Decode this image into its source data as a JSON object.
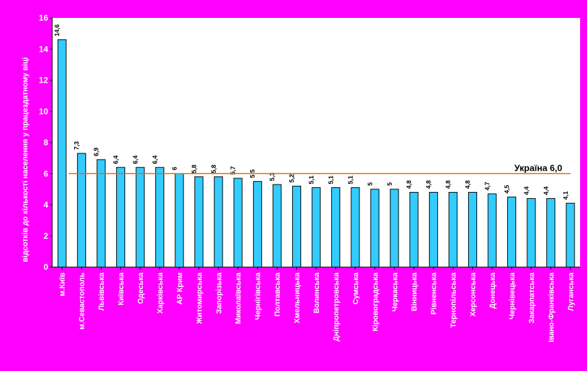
{
  "chart_data": {
    "type": "bar",
    "ylabel": "відсотків до кількості населення у працездатному віці",
    "ylim": [
      0,
      16
    ],
    "yticks": [
      "0",
      "2",
      "4",
      "6",
      "8",
      "10",
      "12",
      "14",
      "16"
    ],
    "grid": false,
    "categories": [
      "м.Київ",
      "м.Севастополь",
      "Львівська",
      "Київська",
      "Одеська",
      "Харківська",
      "АР Крим",
      "Житомирська",
      "Запорізька",
      "Миколаївська",
      "Чернігівська",
      "Полтавська",
      "Хмельницька",
      "Волинська",
      "Дніпропетровська",
      "Сумська",
      "Кіровоградська",
      "Черкаська",
      "Вінницька",
      "Рівненська",
      "Тернопільська",
      "Херсонська",
      "Донецька",
      "Чернівецька",
      "Закарпатська",
      "Івано-Франківська",
      "Луганська"
    ],
    "values": [
      14.6,
      7.3,
      6.9,
      6.4,
      6.4,
      6.4,
      6.0,
      5.8,
      5.8,
      5.7,
      5.5,
      5.3,
      5.2,
      5.1,
      5.1,
      5.1,
      5.0,
      5.0,
      4.8,
      4.8,
      4.8,
      4.8,
      4.7,
      4.5,
      4.4,
      4.4,
      4.1
    ],
    "reference_line": {
      "label": "Україна 6,0",
      "value": 6.0,
      "color": "#e36c09"
    },
    "bar_color": "#33ccff",
    "plot_color": "#ffffff"
  }
}
